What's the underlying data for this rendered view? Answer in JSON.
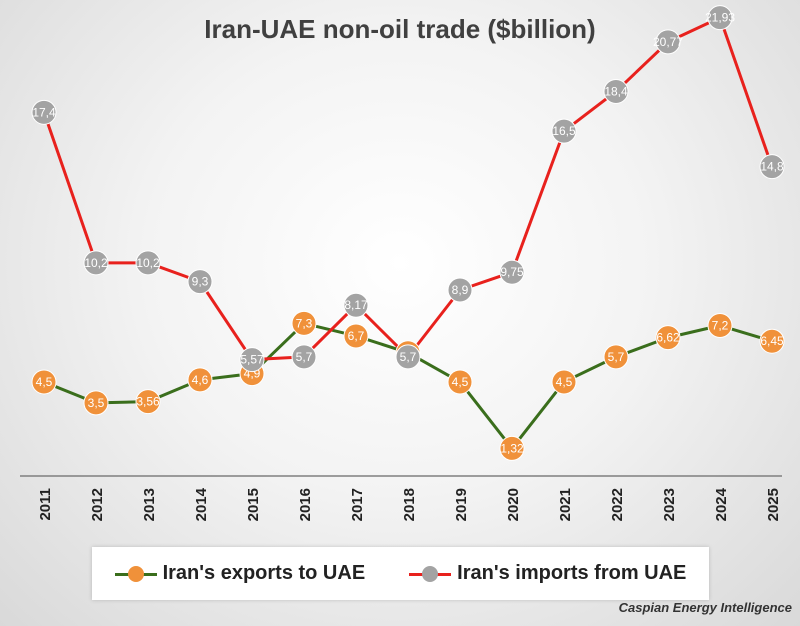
{
  "chart_data": {
    "type": "line",
    "title": "Iran-UAE non-oil trade ($billion)",
    "categories": [
      "2011",
      "2012",
      "2013",
      "2014",
      "2015",
      "2016",
      "2017",
      "2018",
      "2019",
      "2020",
      "2021",
      "2022",
      "2023",
      "2024",
      "2025"
    ],
    "series": [
      {
        "name": "Iran's exports to UAE",
        "values": [
          4.5,
          3.5,
          3.56,
          4.6,
          4.9,
          7.3,
          6.7,
          5.9,
          4.5,
          1.32,
          4.5,
          5.7,
          6.62,
          7.2,
          6.45
        ],
        "labels": [
          "4,5",
          "3,5",
          "3,56",
          "4,6",
          "4,9",
          "7,3",
          "6,7",
          "5,9",
          "4,5",
          "1,32",
          "4,5",
          "5,7",
          "6,62",
          "7,2",
          "6,45"
        ],
        "line_color": "#3a6e1c",
        "marker_color": "#f0913a"
      },
      {
        "name": "Iran's imports from UAE",
        "values": [
          17.4,
          10.2,
          10.2,
          9.3,
          5.57,
          5.7,
          8.17,
          5.7,
          8.9,
          9.75,
          16.5,
          18.4,
          20.77,
          21.93,
          14.8
        ],
        "labels": [
          "17,4",
          "10,2",
          "10,2",
          "9,3",
          "5,57",
          "5,7",
          "8,17",
          "5,7",
          "8,9",
          "9,75",
          "16,5",
          "18,4",
          "20,77",
          "21,93",
          "14,8"
        ],
        "line_color": "#e8211d",
        "marker_color": "#a3a3a3"
      }
    ],
    "ylim": [
      0,
      24
    ],
    "grid": false,
    "legend": "bottom",
    "source": "Caspian Energy Intelligence"
  }
}
